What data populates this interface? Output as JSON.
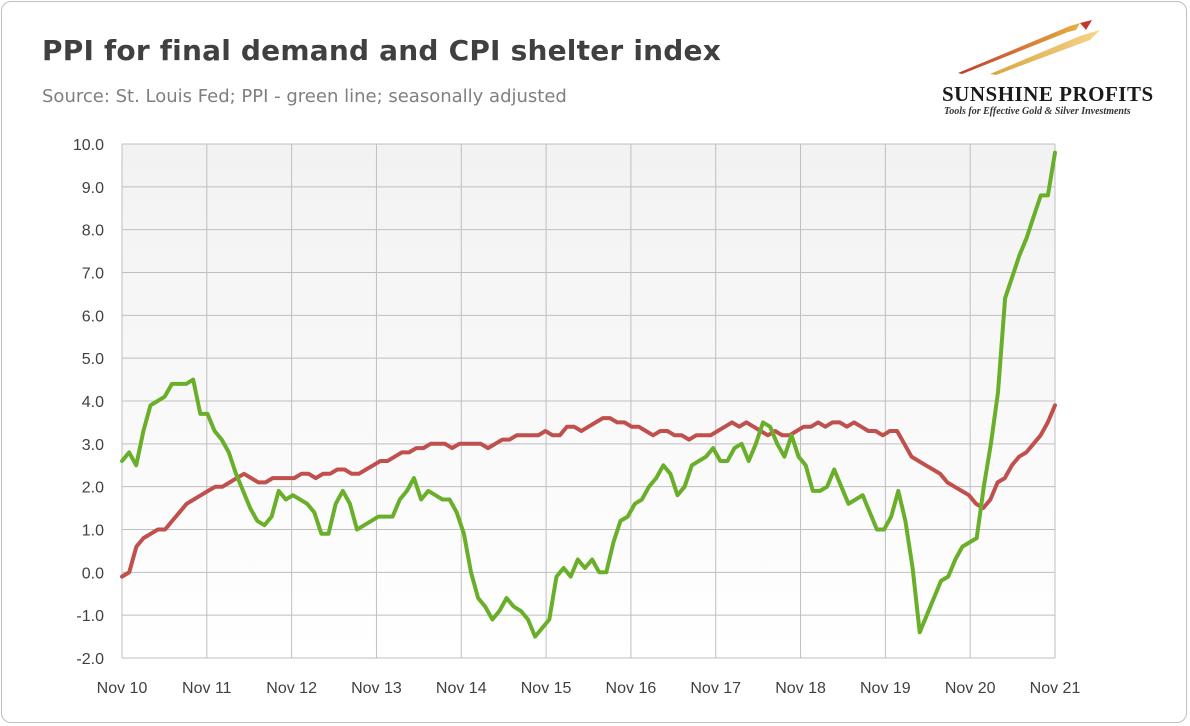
{
  "header": {
    "title": "PPI for final demand and CPI shelter index",
    "subtitle": "Source: St. Louis Fed; PPI - green line; seasonally adjusted"
  },
  "logo": {
    "name": "SUNSHINE PROFITS",
    "tagline": "Tools for Effective Gold & Silver Investments"
  },
  "colors": {
    "ppi": "#6aaf2a",
    "shelter": "#c0504d",
    "plot_bg_top": "#f2f2f2",
    "plot_bg_bottom": "#ffffff",
    "grid": "#bfbfbf"
  },
  "chart_data": {
    "type": "line",
    "title": "PPI for final demand and CPI shelter index",
    "subtitle": "Source: St. Louis Fed; PPI - green line; seasonally adjusted",
    "x_tick_labels": [
      "Nov 10",
      "Nov 11",
      "Nov 12",
      "Nov 13",
      "Nov 14",
      "Nov 15",
      "Nov 16",
      "Nov 17",
      "Nov 18",
      "Nov 19",
      "Nov 20",
      "Nov 21"
    ],
    "y_tick_labels": [
      "10.0",
      "9.0",
      "8.0",
      "7.0",
      "6.0",
      "5.0",
      "4.0",
      "3.0",
      "2.0",
      "1.0",
      "0.0",
      "-1.0",
      "-2.0"
    ],
    "ylim": [
      -2,
      10
    ],
    "x_start": "Nov 10",
    "x_end": "Nov 21",
    "grid": true,
    "series": [
      {
        "color": "#6aaf2a",
        "values": [
          2.6,
          2.8,
          2.5,
          3.3,
          3.9,
          4.0,
          4.1,
          4.4,
          4.4,
          4.4,
          4.5,
          3.7,
          3.7,
          3.3,
          3.1,
          2.8,
          2.3,
          1.9,
          1.5,
          1.2,
          1.1,
          1.3,
          1.9,
          1.7,
          1.8,
          1.7,
          1.6,
          1.4,
          0.9,
          0.9,
          1.6,
          1.9,
          1.6,
          1.0,
          1.1,
          1.2,
          1.3,
          1.3,
          1.3,
          1.7,
          1.9,
          2.2,
          1.7,
          1.9,
          1.8,
          1.7,
          1.7,
          1.4,
          0.9,
          0.0,
          -0.6,
          -0.8,
          -1.1,
          -0.9,
          -0.6,
          -0.8,
          -0.9,
          -1.1,
          -1.5,
          -1.3,
          -1.1,
          -0.1,
          0.1,
          -0.1,
          0.3,
          0.1,
          0.3,
          0.0,
          0.0,
          0.7,
          1.2,
          1.3,
          1.6,
          1.7,
          2.0,
          2.2,
          2.5,
          2.3,
          1.8,
          2.0,
          2.5,
          2.6,
          2.7,
          2.9,
          2.6,
          2.6,
          2.9,
          3.0,
          2.6,
          3.0,
          3.5,
          3.4,
          3.0,
          2.7,
          3.2,
          2.7,
          2.5,
          1.9,
          1.9,
          2.0,
          2.4,
          2.0,
          1.6,
          1.7,
          1.8,
          1.4,
          1.0,
          1.0,
          1.3,
          1.9,
          1.2,
          0.1,
          -1.4,
          -1.0,
          -0.6,
          -0.2,
          -0.1,
          0.3,
          0.6,
          0.7,
          0.8,
          2.0,
          3.0,
          4.2,
          6.4,
          6.9,
          7.4,
          7.8,
          8.3,
          8.8,
          8.8,
          9.8
        ]
      },
      {
        "color": "#c0504d",
        "values": [
          -0.1,
          0.0,
          0.6,
          0.8,
          0.9,
          1.0,
          1.0,
          1.2,
          1.4,
          1.6,
          1.7,
          1.8,
          1.9,
          2.0,
          2.0,
          2.1,
          2.2,
          2.3,
          2.2,
          2.1,
          2.1,
          2.2,
          2.2,
          2.2,
          2.2,
          2.3,
          2.3,
          2.2,
          2.3,
          2.3,
          2.4,
          2.4,
          2.3,
          2.3,
          2.4,
          2.5,
          2.6,
          2.6,
          2.7,
          2.8,
          2.8,
          2.9,
          2.9,
          3.0,
          3.0,
          3.0,
          2.9,
          3.0,
          3.0,
          3.0,
          3.0,
          2.9,
          3.0,
          3.1,
          3.1,
          3.2,
          3.2,
          3.2,
          3.2,
          3.3,
          3.2,
          3.2,
          3.4,
          3.4,
          3.3,
          3.4,
          3.5,
          3.6,
          3.6,
          3.5,
          3.5,
          3.4,
          3.4,
          3.3,
          3.2,
          3.3,
          3.3,
          3.2,
          3.2,
          3.1,
          3.2,
          3.2,
          3.2,
          3.3,
          3.4,
          3.5,
          3.4,
          3.5,
          3.4,
          3.3,
          3.2,
          3.3,
          3.2,
          3.2,
          3.3,
          3.4,
          3.4,
          3.5,
          3.4,
          3.5,
          3.5,
          3.4,
          3.5,
          3.4,
          3.3,
          3.3,
          3.2,
          3.3,
          3.3,
          3.0,
          2.7,
          2.6,
          2.5,
          2.4,
          2.3,
          2.1,
          2.0,
          1.9,
          1.8,
          1.6,
          1.5,
          1.7,
          2.1,
          2.2,
          2.5,
          2.7,
          2.8,
          3.0,
          3.2,
          3.5,
          3.9
        ]
      }
    ]
  }
}
